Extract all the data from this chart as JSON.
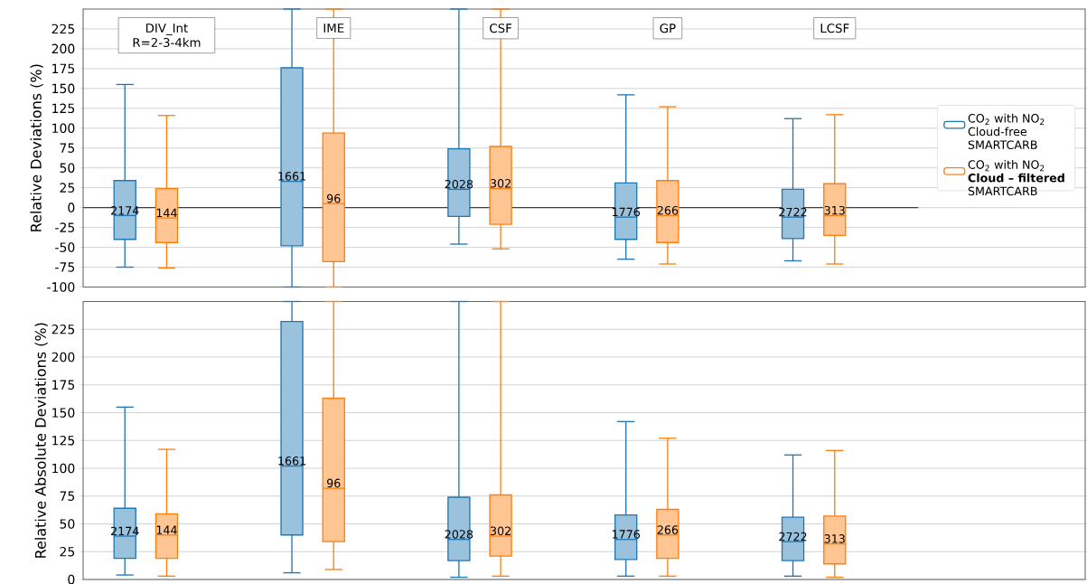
{
  "chart_data": [
    {
      "type": "box",
      "categories": [
        "DIV_Int R=2-3-4km",
        "IME",
        "CSF",
        "GP",
        "LCSF"
      ],
      "ylabel": "Relative Deviations (%)",
      "ylim": [
        -100,
        250
      ],
      "yticks": [
        -100,
        -75,
        -50,
        -25,
        0,
        25,
        50,
        75,
        100,
        125,
        150,
        175,
        200,
        225
      ],
      "grid": "y",
      "legend": "right",
      "tick_labels": "y",
      "ref_lines": [
        {
          "axis": "y",
          "value": 0,
          "color": "#404040"
        }
      ],
      "series": [
        {
          "name": "CO$_{2}$ with NO$_{2}$ Cloud-free SMARTCARB",
          "color": "#1f77b4",
          "value_labels": [
            "2174",
            "1661",
            "2028",
            "1776",
            "2722"
          ],
          "boxes": [
            {
              "low": -75,
              "q1": -40,
              "median": -10,
              "q3": 34,
              "high": 155
            },
            {
              "low": -100,
              "q1": -48,
              "median": 33,
              "q3": 176,
              "high": 250
            },
            {
              "low": -46,
              "q1": -11,
              "median": 23,
              "q3": 74,
              "high": 250
            },
            {
              "low": -65,
              "q1": -40,
              "median": -12,
              "q3": 31,
              "high": 142
            },
            {
              "low": -67,
              "q1": -39,
              "median": -12,
              "q3": 23,
              "high": 112
            }
          ]
        },
        {
          "name": "CO$_{2}$ with NO$_{2}$ **Cloud – filtered** SMARTCARB",
          "color": "#ff7f0e",
          "value_labels": [
            "144",
            "96",
            "302",
            "266",
            "313"
          ],
          "boxes": [
            {
              "low": -76,
              "q1": -44,
              "median": -13,
              "q3": 24,
              "high": 116
            },
            {
              "low": -100,
              "q1": -68,
              "median": 5,
              "q3": 94,
              "high": 250
            },
            {
              "low": -52,
              "q1": -21,
              "median": 24,
              "q3": 77,
              "high": 250
            },
            {
              "low": -71,
              "q1": -44,
              "median": -10,
              "q3": 34,
              "high": 127
            },
            {
              "low": -71,
              "q1": -35,
              "median": -10,
              "q3": 30,
              "high": 117
            }
          ]
        }
      ]
    },
    {
      "type": "box",
      "categories": [
        null,
        null,
        null,
        null,
        null
      ],
      "ylabel": "Relative Absolute Deviations (%)",
      "ylim": [
        0,
        250
      ],
      "yticks": [
        0,
        25,
        50,
        75,
        100,
        125,
        150,
        175,
        200,
        225
      ],
      "grid": "y",
      "tick_labels": "y",
      "series": [
        {
          "color": "#1f77b4",
          "value_labels": [
            "2174",
            "1661",
            "2028",
            "1776",
            "2722"
          ],
          "boxes": [
            {
              "low": 4,
              "q1": 19,
              "median": 39,
              "q3": 64,
              "high": 155
            },
            {
              "low": 6,
              "q1": 40,
              "median": 102,
              "q3": 232,
              "high": 250
            },
            {
              "low": 2,
              "q1": 17,
              "median": 36,
              "q3": 74,
              "high": 250
            },
            {
              "low": 3,
              "q1": 18,
              "median": 36,
              "q3": 58,
              "high": 142
            },
            {
              "low": 3,
              "q1": 17,
              "median": 34,
              "q3": 56,
              "high": 112
            }
          ]
        },
        {
          "color": "#ff7f0e",
          "value_labels": [
            "144",
            "96",
            "302",
            "266",
            "313"
          ],
          "boxes": [
            {
              "low": 3,
              "q1": 19,
              "median": 40,
              "q3": 59,
              "high": 117
            },
            {
              "low": 9,
              "q1": 34,
              "median": 82,
              "q3": 163,
              "high": 250
            },
            {
              "low": 3,
              "q1": 21,
              "median": 39,
              "q3": 76,
              "high": 250
            },
            {
              "low": 3,
              "q1": 19,
              "median": 40,
              "q3": 63,
              "high": 127
            },
            {
              "low": 2,
              "q1": 14,
              "median": 32,
              "q3": 57,
              "high": 116
            }
          ]
        }
      ]
    }
  ]
}
